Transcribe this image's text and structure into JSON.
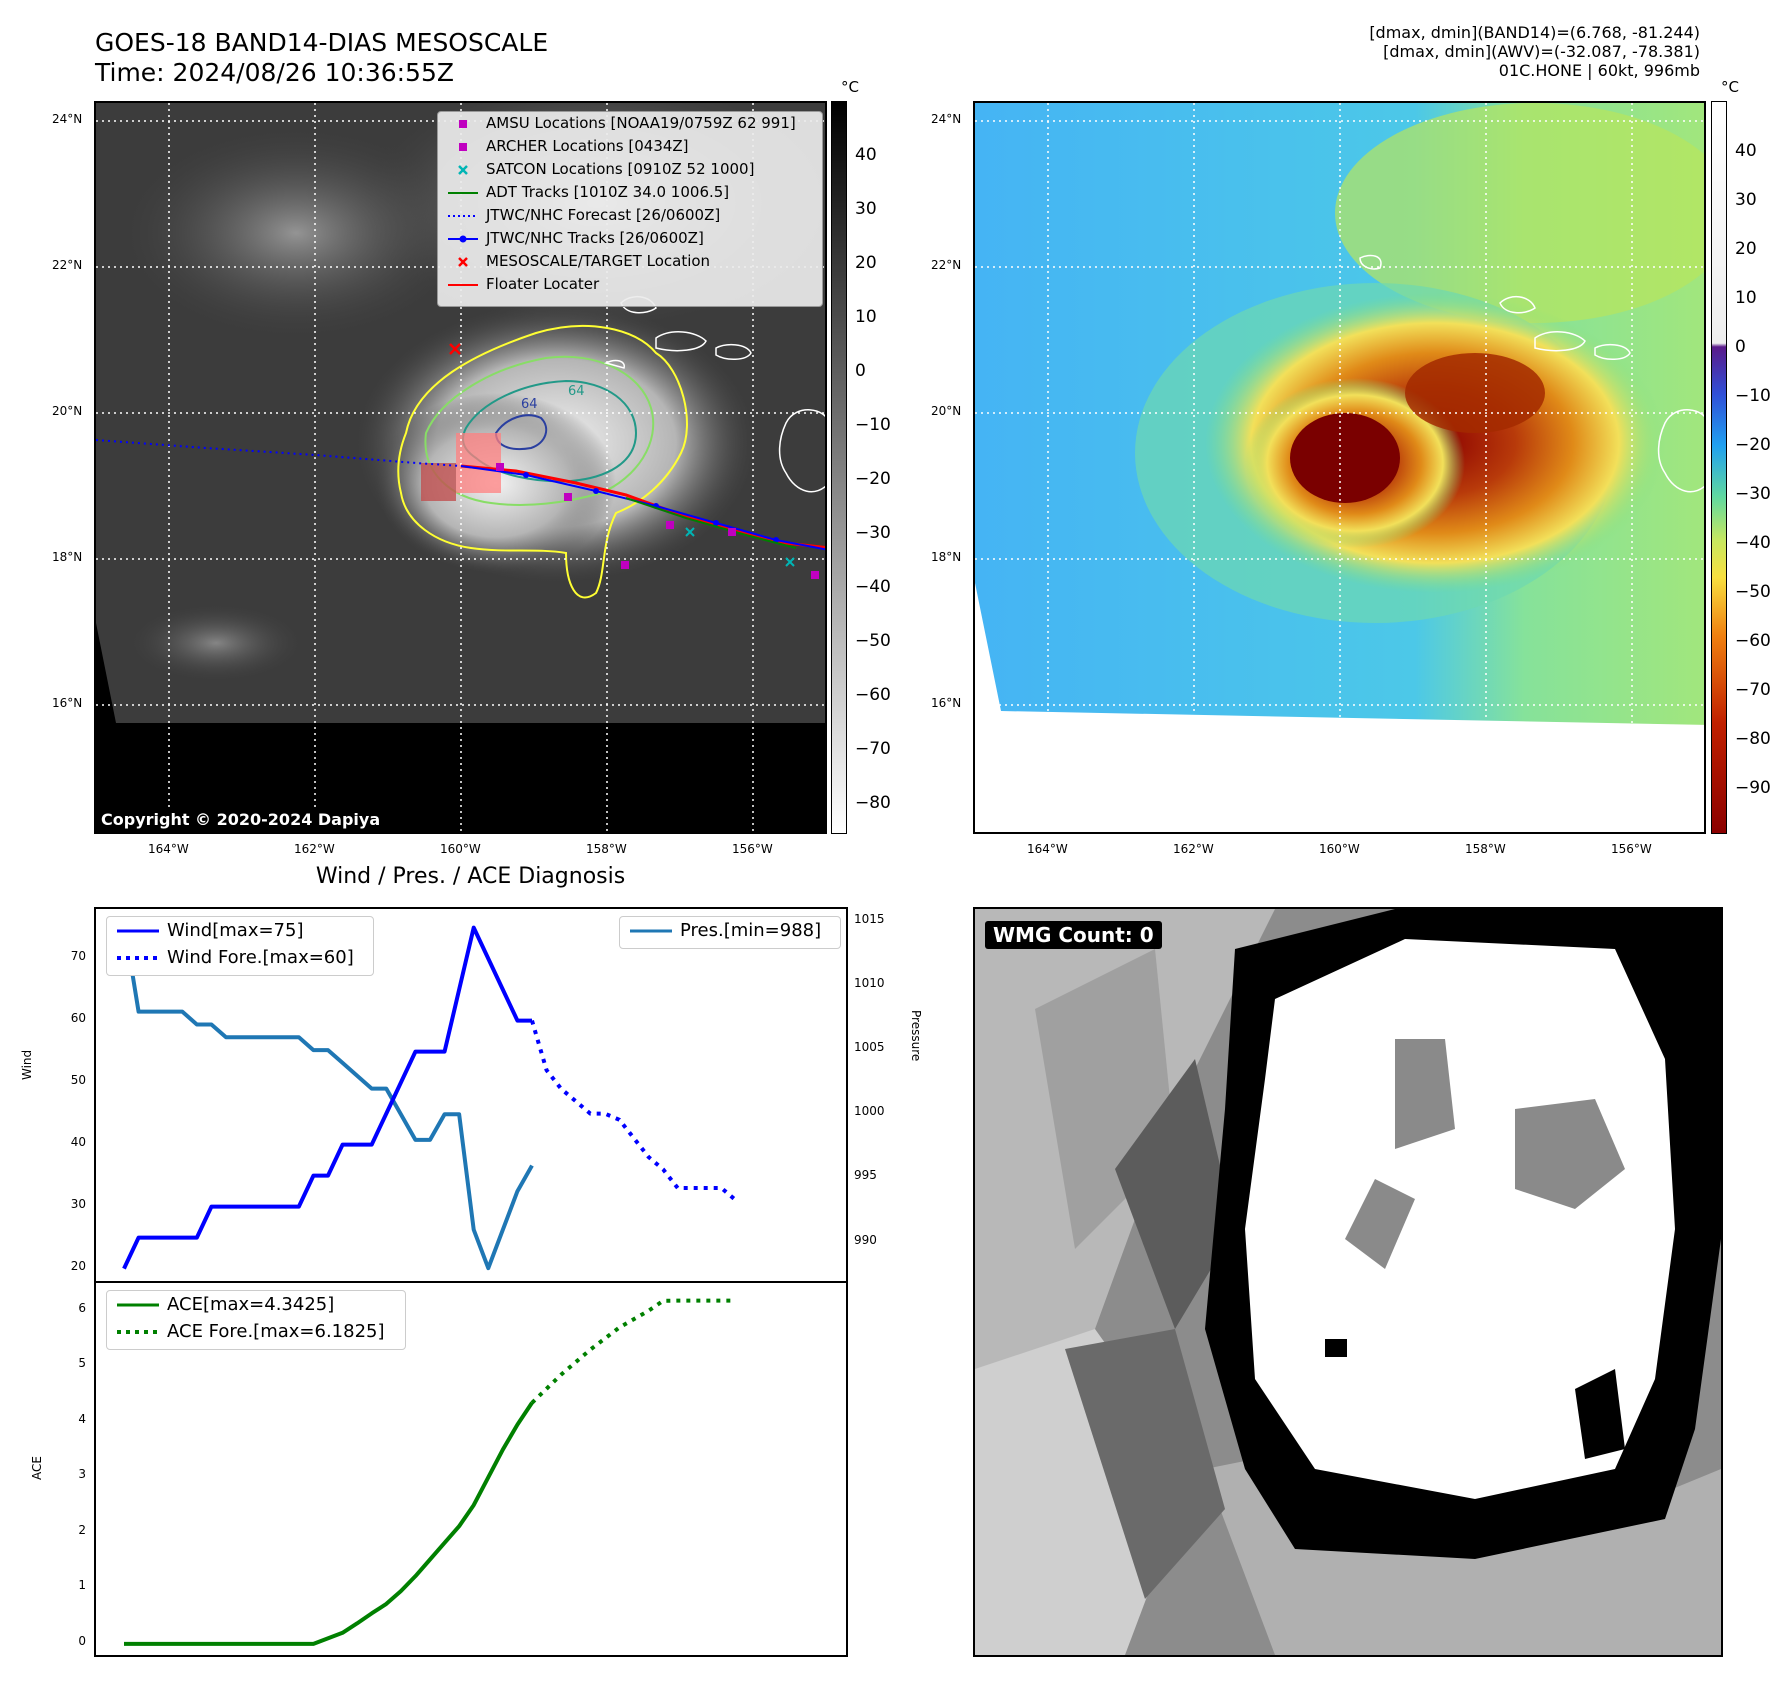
{
  "header": {
    "title_line1": "GOES-18 BAND14-DIAS MESOSCALE",
    "title_line2": "Time: 2024/08/26 10:36:55Z",
    "info_line1": "[dmax, dmin](BAND14)=(6.768, -81.244)",
    "info_line2": "[dmax, dmin](AWV)=(-32.087, -78.381)",
    "info_line3": "01C.HONE | 60kt, 996mb"
  },
  "map": {
    "lat_labels": [
      "24°N",
      "22°N",
      "20°N",
      "18°N",
      "16°N"
    ],
    "lon_labels": [
      "164°W",
      "162°W",
      "160°W",
      "158°W",
      "156°W"
    ],
    "copyright": "Copyright © 2020-2024 Dapiya",
    "contour_labels": [
      "64",
      "64"
    ],
    "legend": [
      {
        "label": "AMSU Locations [NOAA19/0759Z 62 991]",
        "symbol": "square",
        "color": "#c000c0"
      },
      {
        "label": "ARCHER Locations [0434Z]",
        "symbol": "square",
        "color": "#c000c0"
      },
      {
        "label": "SATCON Locations [0910Z 52 1000]",
        "symbol": "x",
        "color": "#00b5b5"
      },
      {
        "label": "ADT Tracks [1010Z 34.0 1006.5]",
        "symbol": "line",
        "color": "#008000"
      },
      {
        "label": "JTWC/NHC Forecast [26/0600Z]",
        "symbol": "dotted",
        "color": "#0000ff"
      },
      {
        "label": "JTWC/NHC Tracks [26/0600Z]",
        "symbol": "line-dot",
        "color": "#0000ff"
      },
      {
        "label": "MESOSCALE/TARGET Location",
        "symbol": "x",
        "color": "#ff0000"
      },
      {
        "label": "Floater Locater",
        "symbol": "line",
        "color": "#ff0000"
      }
    ],
    "colorbar_unit": "°C",
    "colorbar_gray_ticks": [
      "40",
      "30",
      "20",
      "10",
      "0",
      "−10",
      "−20",
      "−30",
      "−40",
      "−50",
      "−60",
      "−70",
      "−80"
    ],
    "colorbar_color_ticks": [
      "40",
      "30",
      "20",
      "10",
      "0",
      "−10",
      "−20",
      "−30",
      "−40",
      "−50",
      "−60",
      "−70",
      "−80",
      "−90"
    ]
  },
  "diagnosis": {
    "title": "Wind / Pres. / ACE Diagnosis",
    "wind_ylabel": "Wind",
    "pres_ylabel": "Pressure",
    "ace_ylabel": "ACE",
    "legend_wind": "Wind[max=75]",
    "legend_wind_fore": "Wind Fore.[max=60]",
    "legend_pres": "Pres.[min=988]",
    "legend_ace": "ACE[max=4.3425]",
    "legend_ace_fore": "ACE Fore.[max=6.1825]"
  },
  "wmg": {
    "label": "WMG Count: 0"
  },
  "chart_data": [
    {
      "type": "line",
      "title": "Wind / Pres. / ACE Diagnosis",
      "ylabel": "Wind",
      "ylim": [
        18,
        78
      ],
      "y2label": "Pressure",
      "y2lim": [
        987,
        1016
      ],
      "yticks": [
        "20",
        "30",
        "40",
        "50",
        "60",
        "70"
      ],
      "y2ticks": [
        "990",
        "995",
        "1000",
        "1005",
        "1010",
        "1015"
      ],
      "series": [
        {
          "name": "Wind[max=75]",
          "style": "solid",
          "color": "#0000ff",
          "x": [
            0,
            1,
            2,
            3,
            4,
            5,
            6,
            7,
            8,
            9,
            10,
            11,
            12,
            13,
            14,
            15,
            16,
            17,
            18,
            19,
            20,
            21,
            22,
            23,
            24,
            25,
            26,
            27,
            28
          ],
          "values": [
            20,
            25,
            25,
            25,
            25,
            25,
            30,
            30,
            30,
            30,
            30,
            30,
            30,
            35,
            35,
            40,
            40,
            40,
            45,
            50,
            55,
            55,
            55,
            65,
            75,
            70,
            65,
            60,
            60
          ]
        },
        {
          "name": "Wind Fore.[max=60]",
          "style": "dotted",
          "color": "#0000ff",
          "x": [
            28,
            29,
            30,
            31,
            32,
            33,
            34,
            35,
            36,
            37,
            38,
            39,
            40,
            41,
            42
          ],
          "values": [
            60,
            52,
            49,
            47,
            45,
            45,
            44,
            41,
            38,
            36,
            33,
            33,
            33,
            33,
            31
          ]
        },
        {
          "name": "Pres.[min=988]",
          "style": "solid",
          "color": "#1f77b4",
          "axis": "right",
          "x": [
            0,
            1,
            2,
            3,
            4,
            5,
            6,
            7,
            8,
            9,
            10,
            11,
            12,
            13,
            14,
            15,
            16,
            17,
            18,
            19,
            20,
            21,
            22,
            23,
            24,
            25,
            26,
            27,
            28
          ],
          "values": [
            1015,
            1008,
            1008,
            1008,
            1008,
            1007,
            1007,
            1006,
            1006,
            1006,
            1006,
            1006,
            1006,
            1005,
            1005,
            1004,
            1003,
            1002,
            1002,
            1000,
            998,
            998,
            1000,
            1000,
            991,
            988,
            991,
            994,
            996
          ]
        }
      ]
    },
    {
      "type": "line",
      "ylabel": "ACE",
      "ylim": [
        -0.2,
        6.5
      ],
      "yticks": [
        "0",
        "1",
        "2",
        "3",
        "4",
        "5",
        "6"
      ],
      "series": [
        {
          "name": "ACE[max=4.3425]",
          "style": "solid",
          "color": "#008000",
          "x": [
            0,
            13,
            15,
            16,
            17,
            18,
            19,
            20,
            21,
            22,
            23,
            24,
            25,
            26,
            27,
            28
          ],
          "values": [
            0,
            0,
            0.2,
            0.37,
            0.55,
            0.72,
            0.95,
            1.22,
            1.52,
            1.82,
            2.12,
            2.5,
            3.0,
            3.5,
            3.95,
            4.3425
          ]
        },
        {
          "name": "ACE Fore.[max=6.1825]",
          "style": "dotted",
          "color": "#008000",
          "x": [
            28,
            30,
            32,
            34,
            36,
            37,
            38,
            39,
            40,
            41,
            42
          ],
          "values": [
            4.3425,
            4.85,
            5.3,
            5.7,
            6.0,
            6.18,
            6.1825,
            6.1825,
            6.1825,
            6.1825,
            6.1825
          ]
        }
      ]
    }
  ]
}
